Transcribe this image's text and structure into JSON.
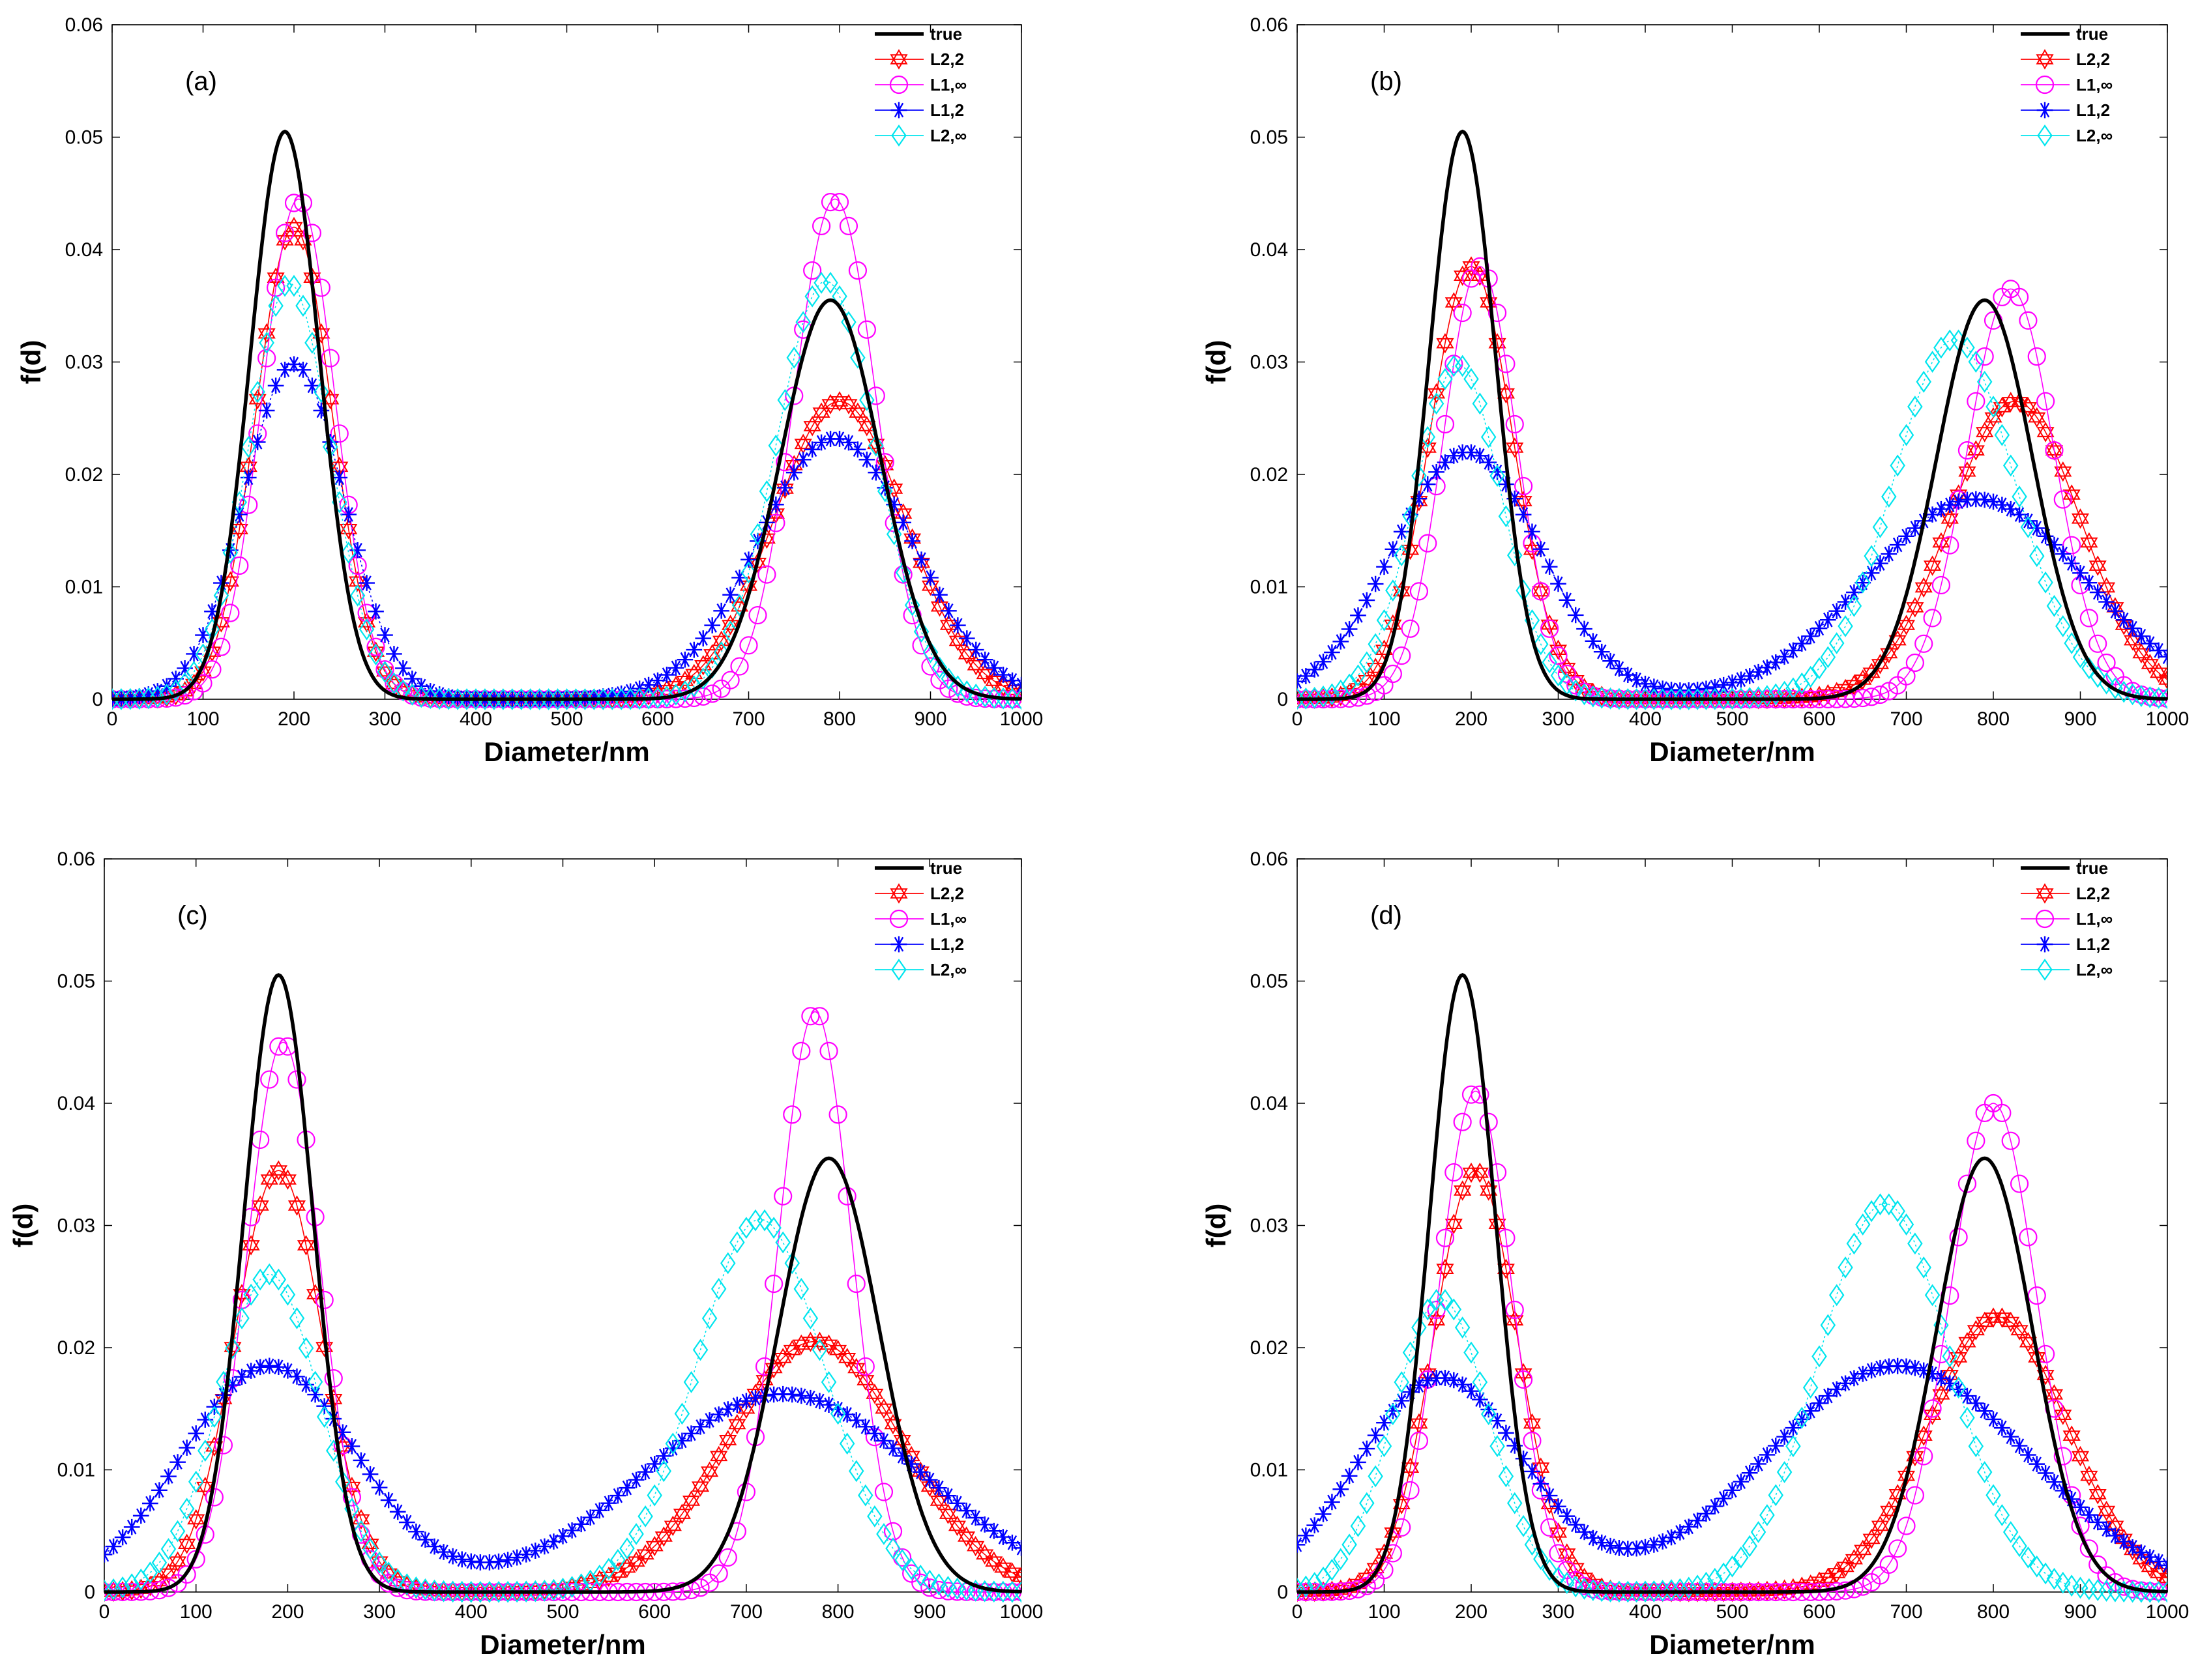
{
  "chart_data": [
    {
      "type": "line",
      "panel_label": "(a)",
      "xlabel": "Diameter/nm",
      "ylabel": "f(d)",
      "xlim": [
        0,
        1000
      ],
      "ylim": [
        0,
        0.06
      ],
      "xticks": [
        0,
        100,
        200,
        300,
        400,
        500,
        600,
        700,
        800,
        900,
        1000
      ],
      "yticks": [
        "0",
        "0.01",
        "0.02",
        "0.03",
        "0.04",
        "0.05",
        "0.06"
      ],
      "legend_position": "top-right",
      "series": [
        {
          "name": "true",
          "marker": "none",
          "color": "#000000",
          "peaks": [
            {
              "mu": 190,
              "sigma": 38,
              "amp": 0.0505
            },
            {
              "mu": 790,
              "sigma": 55,
              "amp": 0.0355
            }
          ]
        },
        {
          "name": "L2,2",
          "marker": "hexagram",
          "color": "#ff0000",
          "peaks": [
            {
              "mu": 200,
              "sigma": 42,
              "amp": 0.042
            },
            {
              "mu": 800,
              "sigma": 72,
              "amp": 0.0265
            }
          ]
        },
        {
          "name": "L1,∞",
          "marker": "circle",
          "color": "#ff00ff",
          "peaks": [
            {
              "mu": 205,
              "sigma": 40,
              "amp": 0.0445
            },
            {
              "mu": 795,
              "sigma": 45,
              "amp": 0.0445
            }
          ]
        },
        {
          "name": "L1,2",
          "marker": "asterisk",
          "color": "#0000ff",
          "peaks": [
            {
              "mu": 200,
              "sigma": 55,
              "amp": 0.0298
            },
            {
              "mu": 795,
              "sigma": 85,
              "amp": 0.0232
            }
          ]
        },
        {
          "name": "L2,∞",
          "marker": "diamond",
          "color": "#00e5ee",
          "peaks": [
            {
              "mu": 195,
              "sigma": 45,
              "amp": 0.037
            },
            {
              "mu": 785,
              "sigma": 55,
              "amp": 0.0372
            }
          ]
        }
      ]
    },
    {
      "type": "line",
      "panel_label": "(b)",
      "xlabel": "Diameter/nm",
      "ylabel": "f(d)",
      "xlim": [
        0,
        1000
      ],
      "ylim": [
        0,
        0.06
      ],
      "xticks": [
        0,
        100,
        200,
        300,
        400,
        500,
        600,
        700,
        800,
        900,
        1000
      ],
      "yticks": [
        "0",
        "0.01",
        "0.02",
        "0.03",
        "0.04",
        "0.05",
        "0.06"
      ],
      "legend_position": "top-right",
      "series": [
        {
          "name": "true",
          "marker": "none",
          "color": "#000000",
          "peaks": [
            {
              "mu": 190,
              "sigma": 38,
              "amp": 0.0505
            },
            {
              "mu": 790,
              "sigma": 55,
              "amp": 0.0355
            }
          ]
        },
        {
          "name": "L2,2",
          "marker": "hexagram",
          "color": "#ff0000",
          "peaks": [
            {
              "mu": 200,
              "sigma": 48,
              "amp": 0.0385
            },
            {
              "mu": 825,
              "sigma": 75,
              "amp": 0.0265
            }
          ]
        },
        {
          "name": "L1,∞",
          "marker": "circle",
          "color": "#ff00ff",
          "peaks": [
            {
              "mu": 210,
              "sigma": 42,
              "amp": 0.0385
            },
            {
              "mu": 820,
              "sigma": 50,
              "amp": 0.0365
            }
          ]
        },
        {
          "name": "L1,2",
          "marker": "asterisk",
          "color": "#0000ff",
          "peaks": [
            {
              "mu": 195,
              "sigma": 85,
              "amp": 0.022
            },
            {
              "mu": 780,
              "sigma": 125,
              "amp": 0.0178
            }
          ]
        },
        {
          "name": "L2,∞",
          "marker": "diamond",
          "color": "#00e5ee",
          "peaks": [
            {
              "mu": 185,
              "sigma": 50,
              "amp": 0.0298
            },
            {
              "mu": 755,
              "sigma": 70,
              "amp": 0.032
            }
          ]
        }
      ]
    },
    {
      "type": "line",
      "panel_label": "(c)",
      "xlabel": "Diameter/nm",
      "ylabel": "f(d)",
      "xlim": [
        0,
        1000
      ],
      "ylim": [
        0,
        0.06
      ],
      "xticks": [
        0,
        100,
        200,
        300,
        400,
        500,
        600,
        700,
        800,
        900,
        1000
      ],
      "yticks": [
        "0",
        "0.01",
        "0.02",
        "0.03",
        "0.04",
        "0.05",
        "0.06"
      ],
      "legend_position": "top-right",
      "series": [
        {
          "name": "true",
          "marker": "none",
          "color": "#000000",
          "peaks": [
            {
              "mu": 190,
              "sigma": 38,
              "amp": 0.0505
            },
            {
              "mu": 790,
              "sigma": 55,
              "amp": 0.0355
            }
          ]
        },
        {
          "name": "L2,2",
          "marker": "hexagram",
          "color": "#ff0000",
          "peaks": [
            {
              "mu": 190,
              "sigma": 48,
              "amp": 0.0345
            },
            {
              "mu": 775,
              "sigma": 95,
              "amp": 0.0205
            }
          ]
        },
        {
          "name": "L1,∞",
          "marker": "circle",
          "color": "#ff00ff",
          "peaks": [
            {
              "mu": 195,
              "sigma": 40,
              "amp": 0.045
            },
            {
              "mu": 775,
              "sigma": 40,
              "amp": 0.0475
            }
          ]
        },
        {
          "name": "L1,2",
          "marker": "asterisk",
          "color": "#0000ff",
          "peaks": [
            {
              "mu": 180,
              "sigma": 95,
              "amp": 0.0185
            },
            {
              "mu": 740,
              "sigma": 150,
              "amp": 0.0162
            }
          ]
        },
        {
          "name": "L2,∞",
          "marker": "diamond",
          "color": "#00e5ee",
          "peaks": [
            {
              "mu": 180,
              "sigma": 55,
              "amp": 0.026
            },
            {
              "mu": 715,
              "sigma": 70,
              "amp": 0.0305
            }
          ]
        }
      ]
    },
    {
      "type": "line",
      "panel_label": "(d)",
      "xlabel": "Diameter/nm",
      "ylabel": "f(d)",
      "xlim": [
        0,
        1000
      ],
      "ylim": [
        0,
        0.06
      ],
      "xticks": [
        0,
        100,
        200,
        300,
        400,
        500,
        600,
        700,
        800,
        900,
        1000
      ],
      "yticks": [
        "0",
        "0.01",
        "0.02",
        "0.03",
        "0.04",
        "0.05",
        "0.06"
      ],
      "legend_position": "top-right",
      "series": [
        {
          "name": "true",
          "marker": "none",
          "color": "#000000",
          "peaks": [
            {
              "mu": 190,
              "sigma": 38,
              "amp": 0.0505
            },
            {
              "mu": 790,
              "sigma": 55,
              "amp": 0.0355
            }
          ]
        },
        {
          "name": "L2,2",
          "marker": "hexagram",
          "color": "#ff0000",
          "peaks": [
            {
              "mu": 205,
              "sigma": 48,
              "amp": 0.0345
            },
            {
              "mu": 805,
              "sigma": 80,
              "amp": 0.0225
            }
          ]
        },
        {
          "name": "L1,∞",
          "marker": "circle",
          "color": "#ff00ff",
          "peaks": [
            {
              "mu": 205,
              "sigma": 42,
              "amp": 0.041
            },
            {
              "mu": 800,
              "sigma": 50,
              "amp": 0.04
            }
          ]
        },
        {
          "name": "L1,2",
          "marker": "asterisk",
          "color": "#0000ff",
          "peaks": [
            {
              "mu": 165,
              "sigma": 95,
              "amp": 0.0175
            },
            {
              "mu": 690,
              "sigma": 150,
              "amp": 0.0185
            }
          ]
        },
        {
          "name": "L2,∞",
          "marker": "diamond",
          "color": "#00e5ee",
          "peaks": [
            {
              "mu": 165,
              "sigma": 55,
              "amp": 0.024
            },
            {
              "mu": 675,
              "sigma": 75,
              "amp": 0.0318
            }
          ]
        }
      ]
    }
  ]
}
